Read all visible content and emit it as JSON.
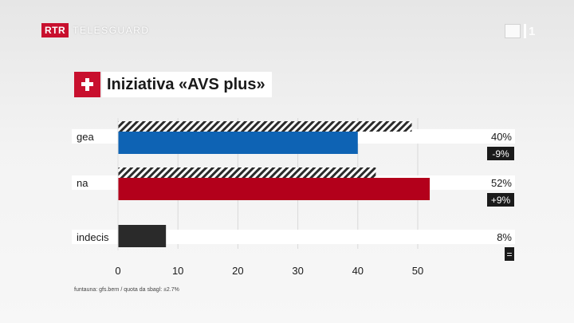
{
  "header": {
    "logo_text": "RTR",
    "channel_name": "TELESGUARD",
    "channel_number": "1"
  },
  "title": "Iniziativa «AVS plus»",
  "source": "funtauna: gfs.bern / quota da sbagl: ±2.7%",
  "colors": {
    "gea": "#0e63b4",
    "na": "#b3001b",
    "indecis": "#2a2a2a",
    "previous": "#2b2b2b",
    "accent": "#c8102e"
  },
  "chart_data": {
    "type": "bar",
    "orientation": "horizontal",
    "categories": [
      "gea",
      "na",
      "indecis"
    ],
    "series": [
      {
        "values": [
          40,
          52,
          8
        ]
      },
      {
        "values": [
          49,
          43,
          null
        ]
      }
    ],
    "value_labels": [
      "40%",
      "52%",
      "8%"
    ],
    "change_labels": [
      "-9%",
      "+9%",
      "="
    ],
    "xlim": [
      0,
      50
    ],
    "xticks": [
      0,
      10,
      20,
      30,
      40,
      50
    ],
    "xlabel": "",
    "ylabel": ""
  }
}
